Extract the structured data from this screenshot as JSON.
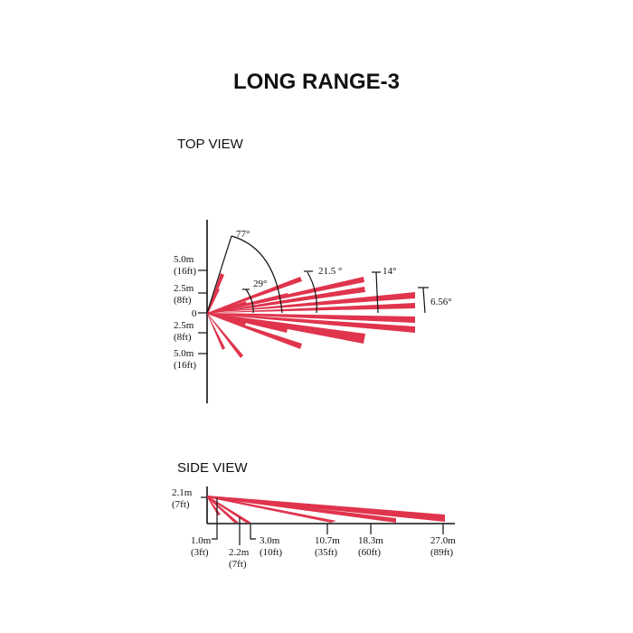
{
  "title": "LONG RANGE-3",
  "top_view": {
    "heading": "TOP VIEW",
    "y_labels": [
      {
        "m": "5.0m",
        "ft": "(16ft)"
      },
      {
        "m": "2.5m",
        "ft": "(8ft)"
      },
      {
        "m": "0",
        "ft": ""
      },
      {
        "m": "2.5m",
        "ft": "(8ft)"
      },
      {
        "m": "5.0m",
        "ft": "(16ft)"
      }
    ],
    "angles": [
      "77°",
      "29°",
      "21.5 °",
      "14°",
      "6.56°"
    ]
  },
  "side_view": {
    "heading": "SIDE VIEW",
    "height_label": {
      "m": "2.1m",
      "ft": "(7ft)"
    },
    "distances": [
      {
        "m": "1.0m",
        "ft": "(3ft)"
      },
      {
        "m": "2.2m",
        "ft": "(7ft)"
      },
      {
        "m": "3.0m",
        "ft": "(10ft)"
      },
      {
        "m": "10.7m",
        "ft": "(35ft)"
      },
      {
        "m": "18.3m",
        "ft": "(60ft)"
      },
      {
        "m": "27.0m",
        "ft": "(89ft)"
      }
    ]
  },
  "colors": {
    "beam": "#e0344d",
    "ink": "#111111"
  }
}
